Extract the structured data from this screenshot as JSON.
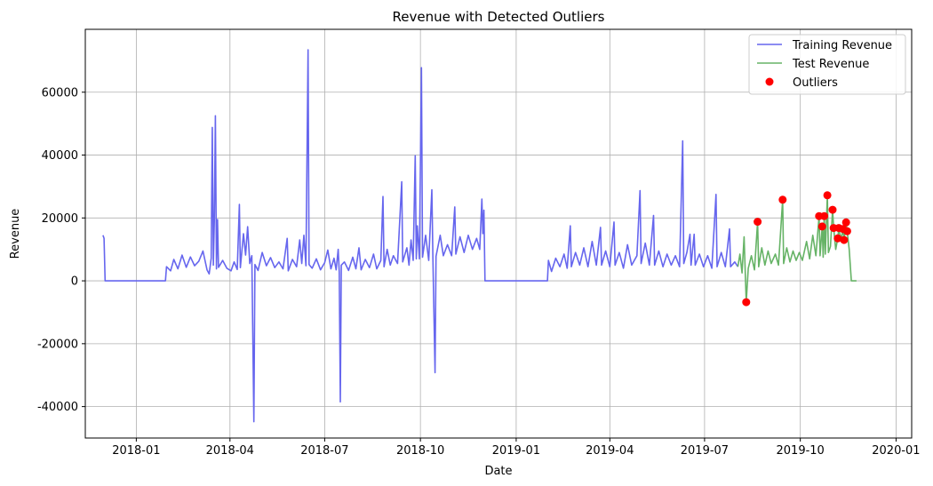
{
  "chart_data": {
    "type": "line",
    "title": "Revenue with Detected Outliers",
    "xlabel": "Date",
    "ylabel": "Revenue",
    "xlim": [
      "2017-11-13",
      "2020-01-16"
    ],
    "ylim": [
      -50000,
      80000
    ],
    "x_ticks": [
      "2018-01",
      "2018-04",
      "2018-07",
      "2018-10",
      "2019-01",
      "2019-04",
      "2019-07",
      "2019-10",
      "2020-01"
    ],
    "y_ticks": [
      -40000,
      -20000,
      0,
      20000,
      40000,
      60000
    ],
    "grid": true,
    "legend_position": "top-right",
    "legend": [
      "Training Revenue",
      "Test Revenue",
      "Outliers"
    ],
    "colors": {
      "training": "#6666ee",
      "test": "#66b366",
      "outliers": "#ff0000"
    },
    "series": [
      {
        "name": "Training Revenue",
        "points": [
          [
            "2017-11-30",
            14500
          ],
          [
            "2017-12-01",
            13500
          ],
          [
            "2017-12-02",
            0
          ],
          [
            "2018-01-29",
            0
          ],
          [
            "2018-01-30",
            4500
          ],
          [
            "2018-02-03",
            3200
          ],
          [
            "2018-02-06",
            6800
          ],
          [
            "2018-02-10",
            3800
          ],
          [
            "2018-02-14",
            8200
          ],
          [
            "2018-02-18",
            4300
          ],
          [
            "2018-02-22",
            7600
          ],
          [
            "2018-02-26",
            4800
          ],
          [
            "2018-03-02",
            6200
          ],
          [
            "2018-03-06",
            9500
          ],
          [
            "2018-03-10",
            3500
          ],
          [
            "2018-03-12",
            2200
          ],
          [
            "2018-03-14",
            7200
          ],
          [
            "2018-03-15",
            48800
          ],
          [
            "2018-03-16",
            5000
          ],
          [
            "2018-03-17",
            19000
          ],
          [
            "2018-03-18",
            52500
          ],
          [
            "2018-03-19",
            3800
          ],
          [
            "2018-03-20",
            19500
          ],
          [
            "2018-03-21",
            4300
          ],
          [
            "2018-03-25",
            6500
          ],
          [
            "2018-03-29",
            4000
          ],
          [
            "2018-04-02",
            3200
          ],
          [
            "2018-04-05",
            6000
          ],
          [
            "2018-04-08",
            3600
          ],
          [
            "2018-04-10",
            24300
          ],
          [
            "2018-04-11",
            4200
          ],
          [
            "2018-04-14",
            15000
          ],
          [
            "2018-04-16",
            8200
          ],
          [
            "2018-04-18",
            17200
          ],
          [
            "2018-04-20",
            5500
          ],
          [
            "2018-04-22",
            8000
          ],
          [
            "2018-04-24",
            -44800
          ],
          [
            "2018-04-25",
            5200
          ],
          [
            "2018-04-28",
            3300
          ],
          [
            "2018-05-02",
            9000
          ],
          [
            "2018-05-06",
            4800
          ],
          [
            "2018-05-10",
            7400
          ],
          [
            "2018-05-14",
            4200
          ],
          [
            "2018-05-18",
            6000
          ],
          [
            "2018-05-22",
            3800
          ],
          [
            "2018-05-26",
            13500
          ],
          [
            "2018-05-27",
            3200
          ],
          [
            "2018-05-31",
            6800
          ],
          [
            "2018-06-04",
            4500
          ],
          [
            "2018-06-07",
            13000
          ],
          [
            "2018-06-09",
            5500
          ],
          [
            "2018-06-11",
            14500
          ],
          [
            "2018-06-13",
            4800
          ],
          [
            "2018-06-15",
            73500
          ],
          [
            "2018-06-16",
            5200
          ],
          [
            "2018-06-19",
            4000
          ],
          [
            "2018-06-23",
            7000
          ],
          [
            "2018-06-27",
            3500
          ],
          [
            "2018-07-01",
            5800
          ],
          [
            "2018-07-04",
            9800
          ],
          [
            "2018-07-07",
            3800
          ],
          [
            "2018-07-10",
            7200
          ],
          [
            "2018-07-12",
            3500
          ],
          [
            "2018-07-14",
            10000
          ],
          [
            "2018-07-15",
            2800
          ],
          [
            "2018-07-16",
            -38500
          ],
          [
            "2018-07-17",
            5000
          ],
          [
            "2018-07-20",
            6000
          ],
          [
            "2018-07-24",
            3300
          ],
          [
            "2018-07-28",
            7500
          ],
          [
            "2018-07-31",
            3800
          ],
          [
            "2018-08-03",
            10500
          ],
          [
            "2018-08-05",
            3500
          ],
          [
            "2018-08-09",
            6800
          ],
          [
            "2018-08-13",
            4200
          ],
          [
            "2018-08-17",
            8500
          ],
          [
            "2018-08-20",
            3800
          ],
          [
            "2018-08-24",
            6500
          ],
          [
            "2018-08-26",
            26800
          ],
          [
            "2018-08-27",
            4500
          ],
          [
            "2018-08-30",
            10000
          ],
          [
            "2018-09-02",
            5000
          ],
          [
            "2018-09-05",
            8000
          ],
          [
            "2018-09-09",
            5500
          ],
          [
            "2018-09-13",
            31500
          ],
          [
            "2018-09-14",
            6000
          ],
          [
            "2018-09-18",
            10500
          ],
          [
            "2018-09-20",
            5000
          ],
          [
            "2018-09-22",
            13000
          ],
          [
            "2018-09-24",
            6500
          ],
          [
            "2018-09-26",
            39800
          ],
          [
            "2018-09-27",
            7000
          ],
          [
            "2018-09-28",
            17500
          ],
          [
            "2018-09-30",
            7000
          ],
          [
            "2018-10-02",
            67800
          ],
          [
            "2018-10-03",
            7500
          ],
          [
            "2018-10-06",
            14500
          ],
          [
            "2018-10-09",
            6500
          ],
          [
            "2018-10-12",
            29000
          ],
          [
            "2018-10-13",
            7000
          ],
          [
            "2018-10-15",
            -29200
          ],
          [
            "2018-10-16",
            7800
          ],
          [
            "2018-10-20",
            14500
          ],
          [
            "2018-10-23",
            8000
          ],
          [
            "2018-10-27",
            11500
          ],
          [
            "2018-10-31",
            8000
          ],
          [
            "2018-11-03",
            23500
          ],
          [
            "2018-11-04",
            8500
          ],
          [
            "2018-11-08",
            14000
          ],
          [
            "2018-11-12",
            9000
          ],
          [
            "2018-11-16",
            14500
          ],
          [
            "2018-11-20",
            10000
          ],
          [
            "2018-11-24",
            13500
          ],
          [
            "2018-11-27",
            10000
          ],
          [
            "2018-11-29",
            26000
          ],
          [
            "2018-11-30",
            15000
          ],
          [
            "2018-12-01",
            22500
          ],
          [
            "2018-12-02",
            0
          ],
          [
            "2019-01-31",
            0
          ],
          [
            "2019-02-01",
            6500
          ],
          [
            "2019-02-04",
            3000
          ],
          [
            "2019-02-08",
            7200
          ],
          [
            "2019-02-12",
            4500
          ],
          [
            "2019-02-16",
            8500
          ],
          [
            "2019-02-19",
            4000
          ],
          [
            "2019-02-22",
            17500
          ],
          [
            "2019-02-23",
            4500
          ],
          [
            "2019-02-27",
            9000
          ],
          [
            "2019-03-03",
            5000
          ],
          [
            "2019-03-07",
            10500
          ],
          [
            "2019-03-11",
            4500
          ],
          [
            "2019-03-15",
            12500
          ],
          [
            "2019-03-19",
            5000
          ],
          [
            "2019-03-23",
            17000
          ],
          [
            "2019-03-24",
            5000
          ],
          [
            "2019-03-28",
            9500
          ],
          [
            "2019-04-01",
            4500
          ],
          [
            "2019-04-05",
            18700
          ],
          [
            "2019-04-06",
            5000
          ],
          [
            "2019-04-10",
            9000
          ],
          [
            "2019-04-14",
            4000
          ],
          [
            "2019-04-18",
            11500
          ],
          [
            "2019-04-22",
            5000
          ],
          [
            "2019-04-27",
            8000
          ],
          [
            "2019-04-30",
            28700
          ],
          [
            "2019-05-01",
            5500
          ],
          [
            "2019-05-05",
            12000
          ],
          [
            "2019-05-09",
            5000
          ],
          [
            "2019-05-13",
            20800
          ],
          [
            "2019-05-14",
            5000
          ],
          [
            "2019-05-18",
            9500
          ],
          [
            "2019-05-22",
            4500
          ],
          [
            "2019-05-26",
            8500
          ],
          [
            "2019-05-30",
            5000
          ],
          [
            "2019-06-03",
            8000
          ],
          [
            "2019-06-07",
            4500
          ],
          [
            "2019-06-10",
            44500
          ],
          [
            "2019-06-11",
            5500
          ],
          [
            "2019-06-14",
            9000
          ],
          [
            "2019-06-17",
            14800
          ],
          [
            "2019-06-18",
            5000
          ],
          [
            "2019-06-21",
            14800
          ],
          [
            "2019-06-22",
            5000
          ],
          [
            "2019-06-26",
            8500
          ],
          [
            "2019-06-30",
            4500
          ],
          [
            "2019-07-04",
            8000
          ],
          [
            "2019-07-08",
            4000
          ],
          [
            "2019-07-12",
            27500
          ],
          [
            "2019-07-13",
            4500
          ],
          [
            "2019-07-17",
            9000
          ],
          [
            "2019-07-21",
            4500
          ],
          [
            "2019-07-25",
            16500
          ],
          [
            "2019-07-26",
            4500
          ],
          [
            "2019-07-30",
            6000
          ],
          [
            "2019-08-02",
            4500
          ]
        ]
      },
      {
        "name": "Test Revenue",
        "points": [
          [
            "2019-08-02",
            4500
          ],
          [
            "2019-08-04",
            8500
          ],
          [
            "2019-08-06",
            2500
          ],
          [
            "2019-08-08",
            14000
          ],
          [
            "2019-08-10",
            -6800
          ],
          [
            "2019-08-12",
            4000
          ],
          [
            "2019-08-15",
            8000
          ],
          [
            "2019-08-18",
            3500
          ],
          [
            "2019-08-21",
            18800
          ],
          [
            "2019-08-22",
            4500
          ],
          [
            "2019-08-25",
            10500
          ],
          [
            "2019-08-28",
            5000
          ],
          [
            "2019-08-31",
            9500
          ],
          [
            "2019-09-03",
            5500
          ],
          [
            "2019-09-07",
            8500
          ],
          [
            "2019-09-10",
            5000
          ],
          [
            "2019-09-14",
            25800
          ],
          [
            "2019-09-15",
            5500
          ],
          [
            "2019-09-18",
            10500
          ],
          [
            "2019-09-21",
            6000
          ],
          [
            "2019-09-24",
            9500
          ],
          [
            "2019-09-27",
            6500
          ],
          [
            "2019-09-30",
            9000
          ],
          [
            "2019-10-03",
            6500
          ],
          [
            "2019-10-07",
            12500
          ],
          [
            "2019-10-10",
            7000
          ],
          [
            "2019-10-13",
            14500
          ],
          [
            "2019-10-16",
            8000
          ],
          [
            "2019-10-19",
            20600
          ],
          [
            "2019-10-20",
            8000
          ],
          [
            "2019-10-22",
            17300
          ],
          [
            "2019-10-23",
            7500
          ],
          [
            "2019-10-24",
            20600
          ],
          [
            "2019-10-25",
            8500
          ],
          [
            "2019-10-27",
            27200
          ],
          [
            "2019-10-28",
            9000
          ],
          [
            "2019-10-30",
            11000
          ],
          [
            "2019-11-01",
            22600
          ],
          [
            "2019-11-02",
            16800
          ],
          [
            "2019-11-04",
            10000
          ],
          [
            "2019-11-06",
            13500
          ],
          [
            "2019-11-07",
            16800
          ],
          [
            "2019-11-09",
            13000
          ],
          [
            "2019-11-11",
            16500
          ],
          [
            "2019-11-12",
            13000
          ],
          [
            "2019-11-14",
            18600
          ],
          [
            "2019-11-15",
            15800
          ],
          [
            "2019-11-17",
            10000
          ],
          [
            "2019-11-19",
            0
          ],
          [
            "2019-11-24",
            0
          ]
        ]
      },
      {
        "name": "Outliers",
        "points": [
          [
            "2019-08-10",
            -6800
          ],
          [
            "2019-08-21",
            18800
          ],
          [
            "2019-09-14",
            25800
          ],
          [
            "2019-10-19",
            20600
          ],
          [
            "2019-10-22",
            17300
          ],
          [
            "2019-10-24",
            20600
          ],
          [
            "2019-10-27",
            27200
          ],
          [
            "2019-11-01",
            22600
          ],
          [
            "2019-11-02",
            16800
          ],
          [
            "2019-11-06",
            13500
          ],
          [
            "2019-11-07",
            16800
          ],
          [
            "2019-11-11",
            16500
          ],
          [
            "2019-11-12",
            13000
          ],
          [
            "2019-11-14",
            18600
          ],
          [
            "2019-11-15",
            15800
          ]
        ]
      }
    ]
  }
}
